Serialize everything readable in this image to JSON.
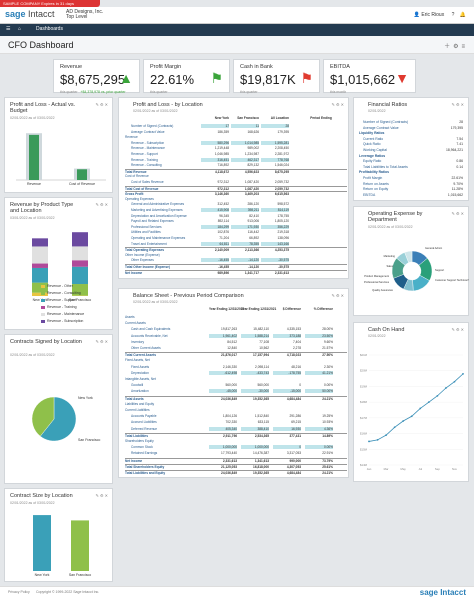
{
  "banner": "SAMPLE COMPANY Expires in 31 days",
  "app": {
    "logo_main": "sage",
    "logo_sub": "Intacct",
    "company_line1": "AD Designs, Inc.",
    "company_line2": "Top Level"
  },
  "user": {
    "name": "Eric Rioux"
  },
  "nav": {
    "items": [
      "Dashboards"
    ]
  },
  "page_title": "CFO Dashboard",
  "kpis": [
    {
      "label": "Revenue",
      "value": "$8,675,295",
      "sub": "this quarter",
      "sub2": "+$4,378,978 vs. prior quarter",
      "icon": "up-arrow-icon",
      "color": "#3aa43a"
    },
    {
      "label": "Profit Margin",
      "value": "22.61%",
      "sub": "this quarter",
      "sub2": "",
      "icon": "flag-icon",
      "color": "#3aa43a"
    },
    {
      "label": "Cash in Bank",
      "value": "$19,817K",
      "sub": "this quarter",
      "sub2": "",
      "icon": "flag-icon",
      "color": "#e03a2f"
    },
    {
      "label": "EBITDA",
      "value": "$1,015,662",
      "sub": "this month",
      "sub2": "",
      "icon": "down-arrow-icon",
      "color": "#e03a2f"
    }
  ],
  "cards": {
    "pl_actual": {
      "title": "Profit and Loss - Actual vs. Budget",
      "asof": "02/01/2022 as of 03/01/2022",
      "legend": [
        "Revenue",
        "Cost of Revenue"
      ]
    },
    "pl_location": {
      "title": "Profit and Loss - by Location",
      "asof": "02/01/2022 as of 03/01/2022"
    },
    "fin_ratios": {
      "title": "Financial Ratios",
      "asof": "02/01/2022"
    },
    "revenue_type": {
      "title": "Revenue by Product Type and Location",
      "asof": "03/01/2022 as of 03/01/2022",
      "categories": [
        "New York",
        "San Francisco"
      ],
      "legend": [
        "Revenue - Other",
        "Revenue - Consulting",
        "Revenue - Support",
        "Revenue - Training",
        "Revenue - Maintenance",
        "Revenue - Subscription"
      ]
    },
    "opex": {
      "title": "Operating Expense by Department",
      "asof": "02/01/2022 as of 03/01/2022"
    },
    "balance": {
      "title": "Balance Sheet - Previous Period Comparison",
      "asof": "02/01/2022 as of 03/01/2022"
    },
    "contracts_signed": {
      "title": "Contracts Signed by Location",
      "asof": "02/01/2022 as of 03/01/2022"
    },
    "cash_on_hand": {
      "title": "Cash On Hand",
      "asof": "02/01/2022"
    },
    "contract_size": {
      "title": "Contract Size by Location",
      "asof": "02/01/2022 as of 03/01/2022"
    }
  },
  "pl_table": {
    "headers": [
      "New York",
      "San Francisco",
      "All Location",
      "Period Ending"
    ],
    "rows": [
      {
        "label": "Number of Signed (Contracts)",
        "vals": [
          "17",
          "11",
          "28"
        ]
      },
      {
        "label": "Average Contract Value",
        "vals": [
          "186,359",
          "168,626",
          "179,395"
        ]
      },
      {
        "label": "Revenue",
        "vals": [
          "",
          "",
          ""
        ]
      },
      {
        "label": "Revenue - Subscription",
        "vals": [
          "580,296",
          "1,014,985",
          "1,595,281"
        ]
      },
      {
        "label": "Revenue - Maintenance",
        "vals": [
          "1,219,448",
          "989,002",
          "2,208,450"
        ]
      },
      {
        "label": "Revenue - Support",
        "vals": [
          "1,046,985",
          "1,234,987",
          "2,281,972"
        ]
      },
      {
        "label": "Revenue - Training",
        "vals": [
          "316,451",
          "462,317",
          "778,768"
        ]
      },
      {
        "label": "Revenue - Consulting",
        "vals": [
          "716,892",
          "829,132",
          "1,546,024"
        ]
      },
      {
        "label": "Total Revenue",
        "vals": [
          "4,118,672",
          "4,556,623",
          "8,675,295"
        ]
      },
      {
        "label": "Cost of Revenue",
        "vals": [
          "",
          "",
          ""
        ]
      },
      {
        "label": "Cost of Sales Revenue",
        "vals": [
          "972,312",
          "1,087,420",
          "2,059,732"
        ]
      },
      {
        "label": "Total Cost of Revenue",
        "vals": [
          "972,312",
          "1,087,420",
          "2,059,732"
        ]
      },
      {
        "label": "Gross Profit",
        "vals": [
          "3,146,360",
          "3,469,203",
          "6,615,563"
        ]
      },
      {
        "label": "Operating Expenses",
        "vals": [
          "",
          "",
          ""
        ]
      },
      {
        "label": "General and Administrative Expenses",
        "vals": [
          "312,452",
          "286,120",
          "598,572"
        ]
      },
      {
        "label": "Marketing and Advertising Expenses",
        "vals": [
          "415,908",
          "398,211",
          "814,119"
        ]
      },
      {
        "label": "Depreciation and Amortization Expense",
        "vals": [
          "96,345",
          "82,410",
          "178,755"
        ]
      },
      {
        "label": "Payroll and Related Expenses",
        "vals": [
          "892,114",
          "913,006",
          "1,805,120"
        ]
      },
      {
        "label": "Professional Services",
        "vals": [
          "184,299",
          "171,930",
          "356,229"
        ]
      },
      {
        "label": "Utilities and Facilities",
        "vals": [
          "102,876",
          "116,442",
          "219,318"
        ]
      },
      {
        "label": "Operating and Maintenance Expenses",
        "vals": [
          "71,204",
          "66,892",
          "138,096"
        ]
      },
      {
        "label": "Travel and Entertainment",
        "vals": [
          "64,811",
          "78,355",
          "143,166"
        ]
      },
      {
        "label": "Total Operating Expenses",
        "vals": [
          "2,140,009",
          "2,113,366",
          "4,253,375"
        ]
      },
      {
        "label": "Other Income (Expense)",
        "vals": [
          "",
          "",
          ""
        ]
      },
      {
        "label": "Other Expenses",
        "vals": [
          "-16,455",
          "-14,120",
          "-30,575"
        ]
      },
      {
        "label": "Total Other Income (Expense)",
        "vals": [
          "-16,455",
          "-14,120",
          "-30,575"
        ]
      },
      {
        "label": "Net Income",
        "vals": [
          "989,896",
          "1,341,717",
          "2,331,613"
        ]
      }
    ]
  },
  "fin_ratios_rows": [
    {
      "label": "Number of Signed (Contracts)",
      "val": "28"
    },
    {
      "label": "Average Contract Value",
      "val": "179,395"
    },
    {
      "label": "Liquidity Ratios",
      "val": ""
    },
    {
      "label": "Current Ratio",
      "val": "7.54"
    },
    {
      "label": "Quick Ratio",
      "val": "7.41"
    },
    {
      "label": "Working Capital",
      "val": "18,964,221"
    },
    {
      "label": "Leverage Ratios",
      "val": ""
    },
    {
      "label": "Equity Ratio",
      "val": "0.86"
    },
    {
      "label": "Total Liabilities to Total Assets",
      "val": "0.14"
    },
    {
      "label": "Profitability Ratios",
      "val": ""
    },
    {
      "label": "Profit Margin",
      "val": "22.61%"
    },
    {
      "label": "Return on Assets",
      "val": "9.70%"
    },
    {
      "label": "Return on Equity",
      "val": "11.28%"
    },
    {
      "label": "EBITDA",
      "val": "1,015,662"
    }
  ],
  "balance_table": {
    "headers": [
      "Year Ending 12/31/2022",
      "Year Ending 12/31/2021",
      "$ Difference",
      "% Difference"
    ],
    "rows": [
      {
        "label": "Assets",
        "vals": [
          "",
          "",
          "",
          ""
        ]
      },
      {
        "label": "Current Assets",
        "vals": [
          "",
          "",
          "",
          ""
        ]
      },
      {
        "label": "Cash and Cash Equivalents",
        "vals": [
          "19,817,263",
          "15,482,110",
          "4,335,153",
          "28.00%"
        ]
      },
      {
        "label": "Accounts Receivable, Net",
        "vals": [
          "1,961,402",
          "1,588,214",
          "373,188",
          "23.50%"
        ]
      },
      {
        "label": "Inventory",
        "vals": [
          "84,512",
          "77,108",
          "7,404",
          "9.60%"
        ]
      },
      {
        "label": "Other Current Assets",
        "vals": [
          "12,840",
          "10,562",
          "2,278",
          "21.57%"
        ]
      },
      {
        "label": "Total Current Assets",
        "vals": [
          "21,876,017",
          "17,157,994",
          "4,718,023",
          "27.50%"
        ]
      },
      {
        "label": "Fixed Assets, Net",
        "vals": [
          "",
          "",
          "",
          ""
        ]
      },
      {
        "label": "Fixed Assets",
        "vals": [
          "2,146,330",
          "2,098,114",
          "48,216",
          "2.30%"
        ]
      },
      {
        "label": "Depreciation",
        "vals": [
          "-612,498",
          "-433,743",
          "-178,755",
          "41.21%"
        ]
      },
      {
        "label": "Intangible Assets, Net",
        "vals": [
          "",
          "",
          "",
          ""
        ]
      },
      {
        "label": "Goodwill",
        "vals": [
          "560,000",
          "560,000",
          "0",
          "0.00%"
        ]
      },
      {
        "label": "Amortization",
        "vals": [
          "-45,000",
          "-30,000",
          "-15,000",
          "50.00%"
        ]
      },
      {
        "label": "Total Assets",
        "vals": [
          "24,036,849",
          "19,352,365",
          "4,684,484",
          "24.21%"
        ]
      },
      {
        "label": "Liabilities and Equity",
        "vals": [
          "",
          "",
          "",
          ""
        ]
      },
      {
        "label": "Current Liabilities",
        "vals": [
          "",
          "",
          "",
          ""
        ]
      },
      {
        "label": "Accounts Payable",
        "vals": [
          "1,804,126",
          "1,512,840",
          "291,286",
          "19.25%"
        ]
      },
      {
        "label": "Accrued Liabilities",
        "vals": [
          "702,330",
          "633,115",
          "69,215",
          "10.93%"
        ]
      },
      {
        "label": "Deferred Revenue",
        "vals": [
          "405,340",
          "388,410",
          "16,930",
          "4.36%"
        ]
      },
      {
        "label": "Total Liabilities",
        "vals": [
          "2,911,796",
          "2,534,365",
          "377,431",
          "14.89%"
        ]
      },
      {
        "label": "Shareholders Equity",
        "vals": [
          "",
          "",
          "",
          ""
        ]
      },
      {
        "label": "Common Stock",
        "vals": [
          "1,000,000",
          "1,000,000",
          "0",
          "0.00%"
        ]
      },
      {
        "label": "Retained Earnings",
        "vals": [
          "17,793,440",
          "14,476,387",
          "3,317,053",
          "22.91%"
        ]
      },
      {
        "label": "Net Income",
        "vals": [
          "2,331,613",
          "1,341,613",
          "990,000",
          "73.79%"
        ]
      },
      {
        "label": "Total Shareholders Equity",
        "vals": [
          "21,125,053",
          "16,818,000",
          "4,307,053",
          "25.61%"
        ]
      },
      {
        "label": "Total Liabilities and Equity",
        "vals": [
          "24,036,849",
          "19,352,365",
          "4,684,484",
          "24.21%"
        ]
      }
    ]
  },
  "opex_labels": [
    "General Admin",
    "Marketing",
    "Sales",
    "Product Management",
    "Customer Support Technical Services",
    "Support",
    "Professional Services",
    "Quality Assurance"
  ],
  "footer": {
    "links": [
      "Privacy Policy",
      "Copyright © 1999-2022 Sage Intacct Inc."
    ],
    "brand": "sage Intacct"
  },
  "chart_data": [
    {
      "type": "bar",
      "name_ref": "pl_actual",
      "categories": [
        "Revenue",
        "Cost of Revenue"
      ],
      "series": [
        {
          "name": "Actual",
          "values": [
            8675295,
            2059732
          ]
        },
        {
          "name": "Budget",
          "values": [
            9000000,
            2200000
          ]
        }
      ]
    },
    {
      "type": "bar",
      "name_ref": "revenue_type",
      "categories": [
        "New York",
        "San Francisco"
      ],
      "series": [
        {
          "name": "Revenue - Other",
          "values": [
            238600,
            26200
          ]
        },
        {
          "name": "Revenue - Consulting",
          "values": [
            716892,
            829132
          ]
        },
        {
          "name": "Revenue - Support",
          "values": [
            1046985,
            1234987
          ]
        },
        {
          "name": "Revenue - Training",
          "values": [
            316451,
            462317
          ]
        },
        {
          "name": "Revenue - Maintenance",
          "values": [
            1219448,
            989002
          ]
        },
        {
          "name": "Revenue - Subscription",
          "values": [
            580296,
            1014985
          ]
        }
      ],
      "colors": [
        "#e8c540",
        "#8fc04a",
        "#3aa0b8",
        "#b04a9a",
        "#e0e0e0",
        "#6b4aa0"
      ]
    },
    {
      "type": "pie",
      "name_ref": "opex",
      "labels": [
        "General Admin",
        "Marketing",
        "Sales",
        "Product Management",
        "Customer Support Technical Services",
        "Support",
        "Professional Services",
        "Quality Assurance"
      ],
      "values": [
        14,
        19,
        16,
        8,
        12,
        17,
        8,
        6
      ],
      "colors": [
        "#3a7fb7",
        "#2aa07a",
        "#4ab0c8",
        "#80c0d0",
        "#1f5f8a",
        "#4aa08a",
        "#9ad0d8",
        "#cfe6ea"
      ]
    },
    {
      "type": "pie",
      "name_ref": "contracts_signed",
      "labels": [
        "New York",
        "San Francisco"
      ],
      "values": [
        17,
        11
      ],
      "colors": [
        "#3aa0b8",
        "#8fc04a"
      ]
    },
    {
      "type": "line",
      "name_ref": "cash_on_hand",
      "x": [
        "Jan",
        "Feb",
        "Mar",
        "Apr",
        "May",
        "Jun",
        "Jul",
        "Aug",
        "Sep",
        "Oct",
        "Nov",
        "Dec"
      ],
      "values": [
        15.5,
        15.6,
        15.9,
        16.4,
        16.8,
        17.1,
        17.6,
        18.0,
        18.4,
        18.9,
        19.3,
        19.8
      ],
      "ylim": [
        14,
        21
      ]
    },
    {
      "type": "bar",
      "name_ref": "contract_size",
      "categories": [
        "New York",
        "San Francisco"
      ],
      "values": [
        186359,
        168626
      ]
    }
  ]
}
